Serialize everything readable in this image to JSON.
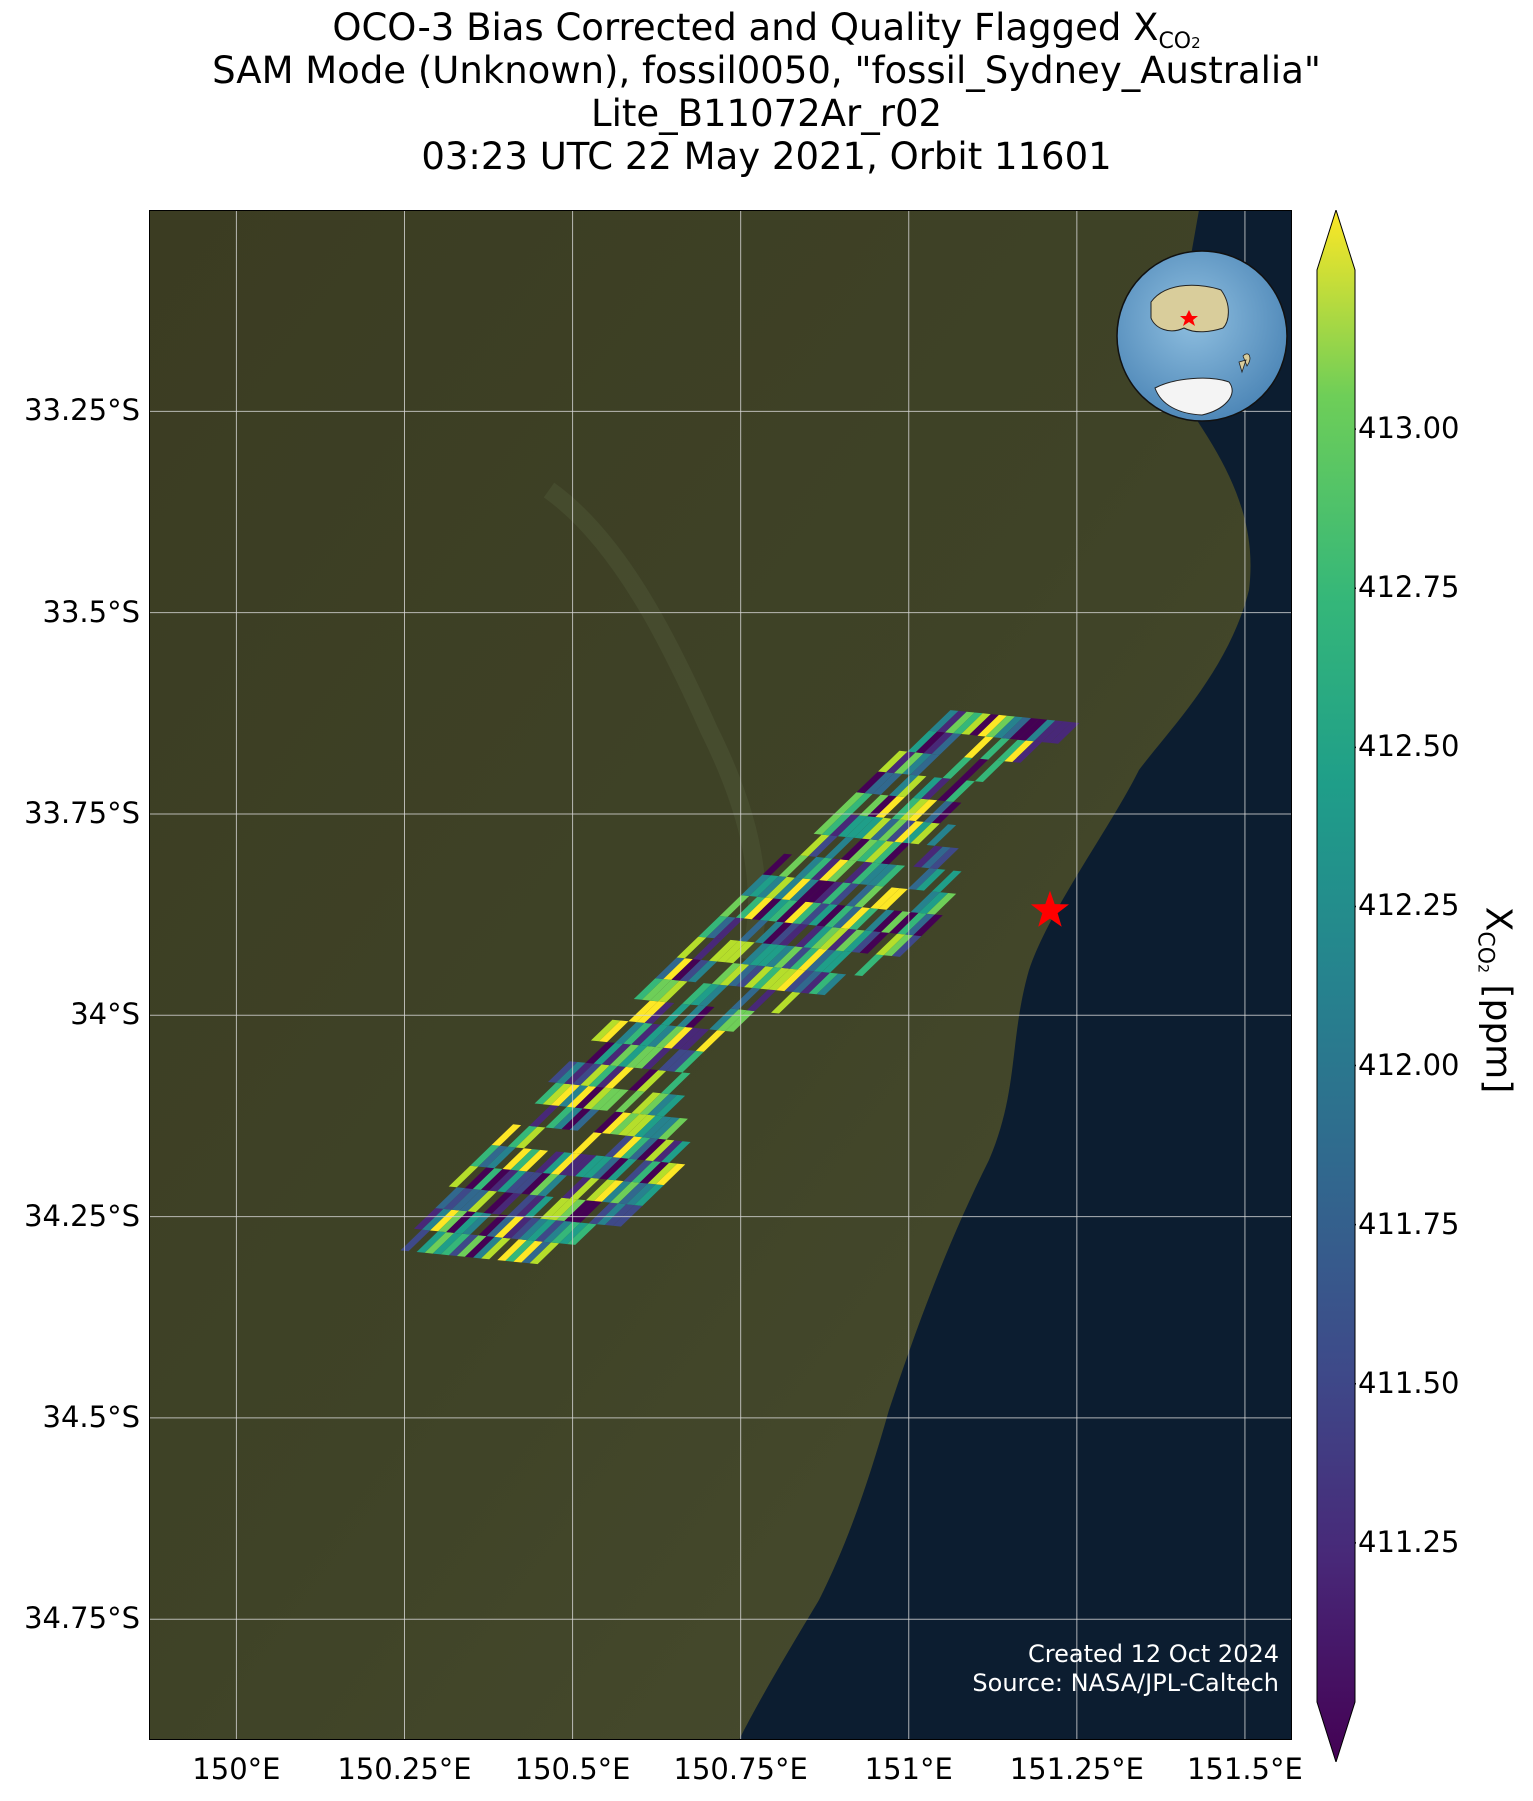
{
  "title": {
    "line1_prefix": "OCO-3 Bias Corrected and Quality Flagged X",
    "line1_sub": "CO",
    "line1_subsub": "2",
    "line2": "SAM Mode (Unknown), fossil0050, \"fossil_Sydney_Australia\"",
    "line3": "Lite_B11072Ar_r02",
    "line4": "03:23 UTC 22 May 2021, Orbit 11601"
  },
  "map": {
    "lat_ticks": [
      "33.25°S",
      "33.5°S",
      "33.75°S",
      "34°S",
      "34.25°S",
      "34.5°S",
      "34.75°S"
    ],
    "lon_ticks": [
      "150°E",
      "150.25°E",
      "150.5°E",
      "150.75°E",
      "151°E",
      "151.25°E",
      "151.5°E"
    ],
    "lat_values": [
      -33.25,
      -33.5,
      -33.75,
      -34.0,
      -34.25,
      -34.5,
      -34.75
    ],
    "lon_values": [
      150.0,
      150.25,
      150.5,
      150.75,
      151.0,
      151.25,
      151.5
    ],
    "extent": {
      "lon_min": 149.87,
      "lon_max": 151.57,
      "lat_min": -34.9,
      "lat_max": -33.0
    },
    "target": {
      "name": "fossil_Sydney_Australia",
      "lon": 151.21,
      "lat": -33.87,
      "marker": "red-star"
    },
    "colors": {
      "land": "#3a3f26",
      "ocean": "#0c1d30",
      "grid": "#d8d8d8",
      "target": "#ff0000"
    }
  },
  "colorbar": {
    "label_prefix": "X",
    "label_sub": "CO",
    "label_subsub": "2",
    "label_suffix": " [ppm]",
    "ticks": [
      "413.00",
      "412.75",
      "412.50",
      "412.25",
      "412.00",
      "411.75",
      "411.50",
      "411.25"
    ],
    "tick_values": [
      413.0,
      412.75,
      412.5,
      412.25,
      412.0,
      411.75,
      411.5,
      411.25
    ],
    "range": [
      411.0,
      413.25
    ],
    "colormap": "viridis",
    "extend": "both"
  },
  "credits": {
    "created": "Created 12 Oct 2024",
    "source": "Source: NASA/JPL-Caltech"
  },
  "inset": {
    "type": "globe",
    "marker": "red-star"
  }
}
